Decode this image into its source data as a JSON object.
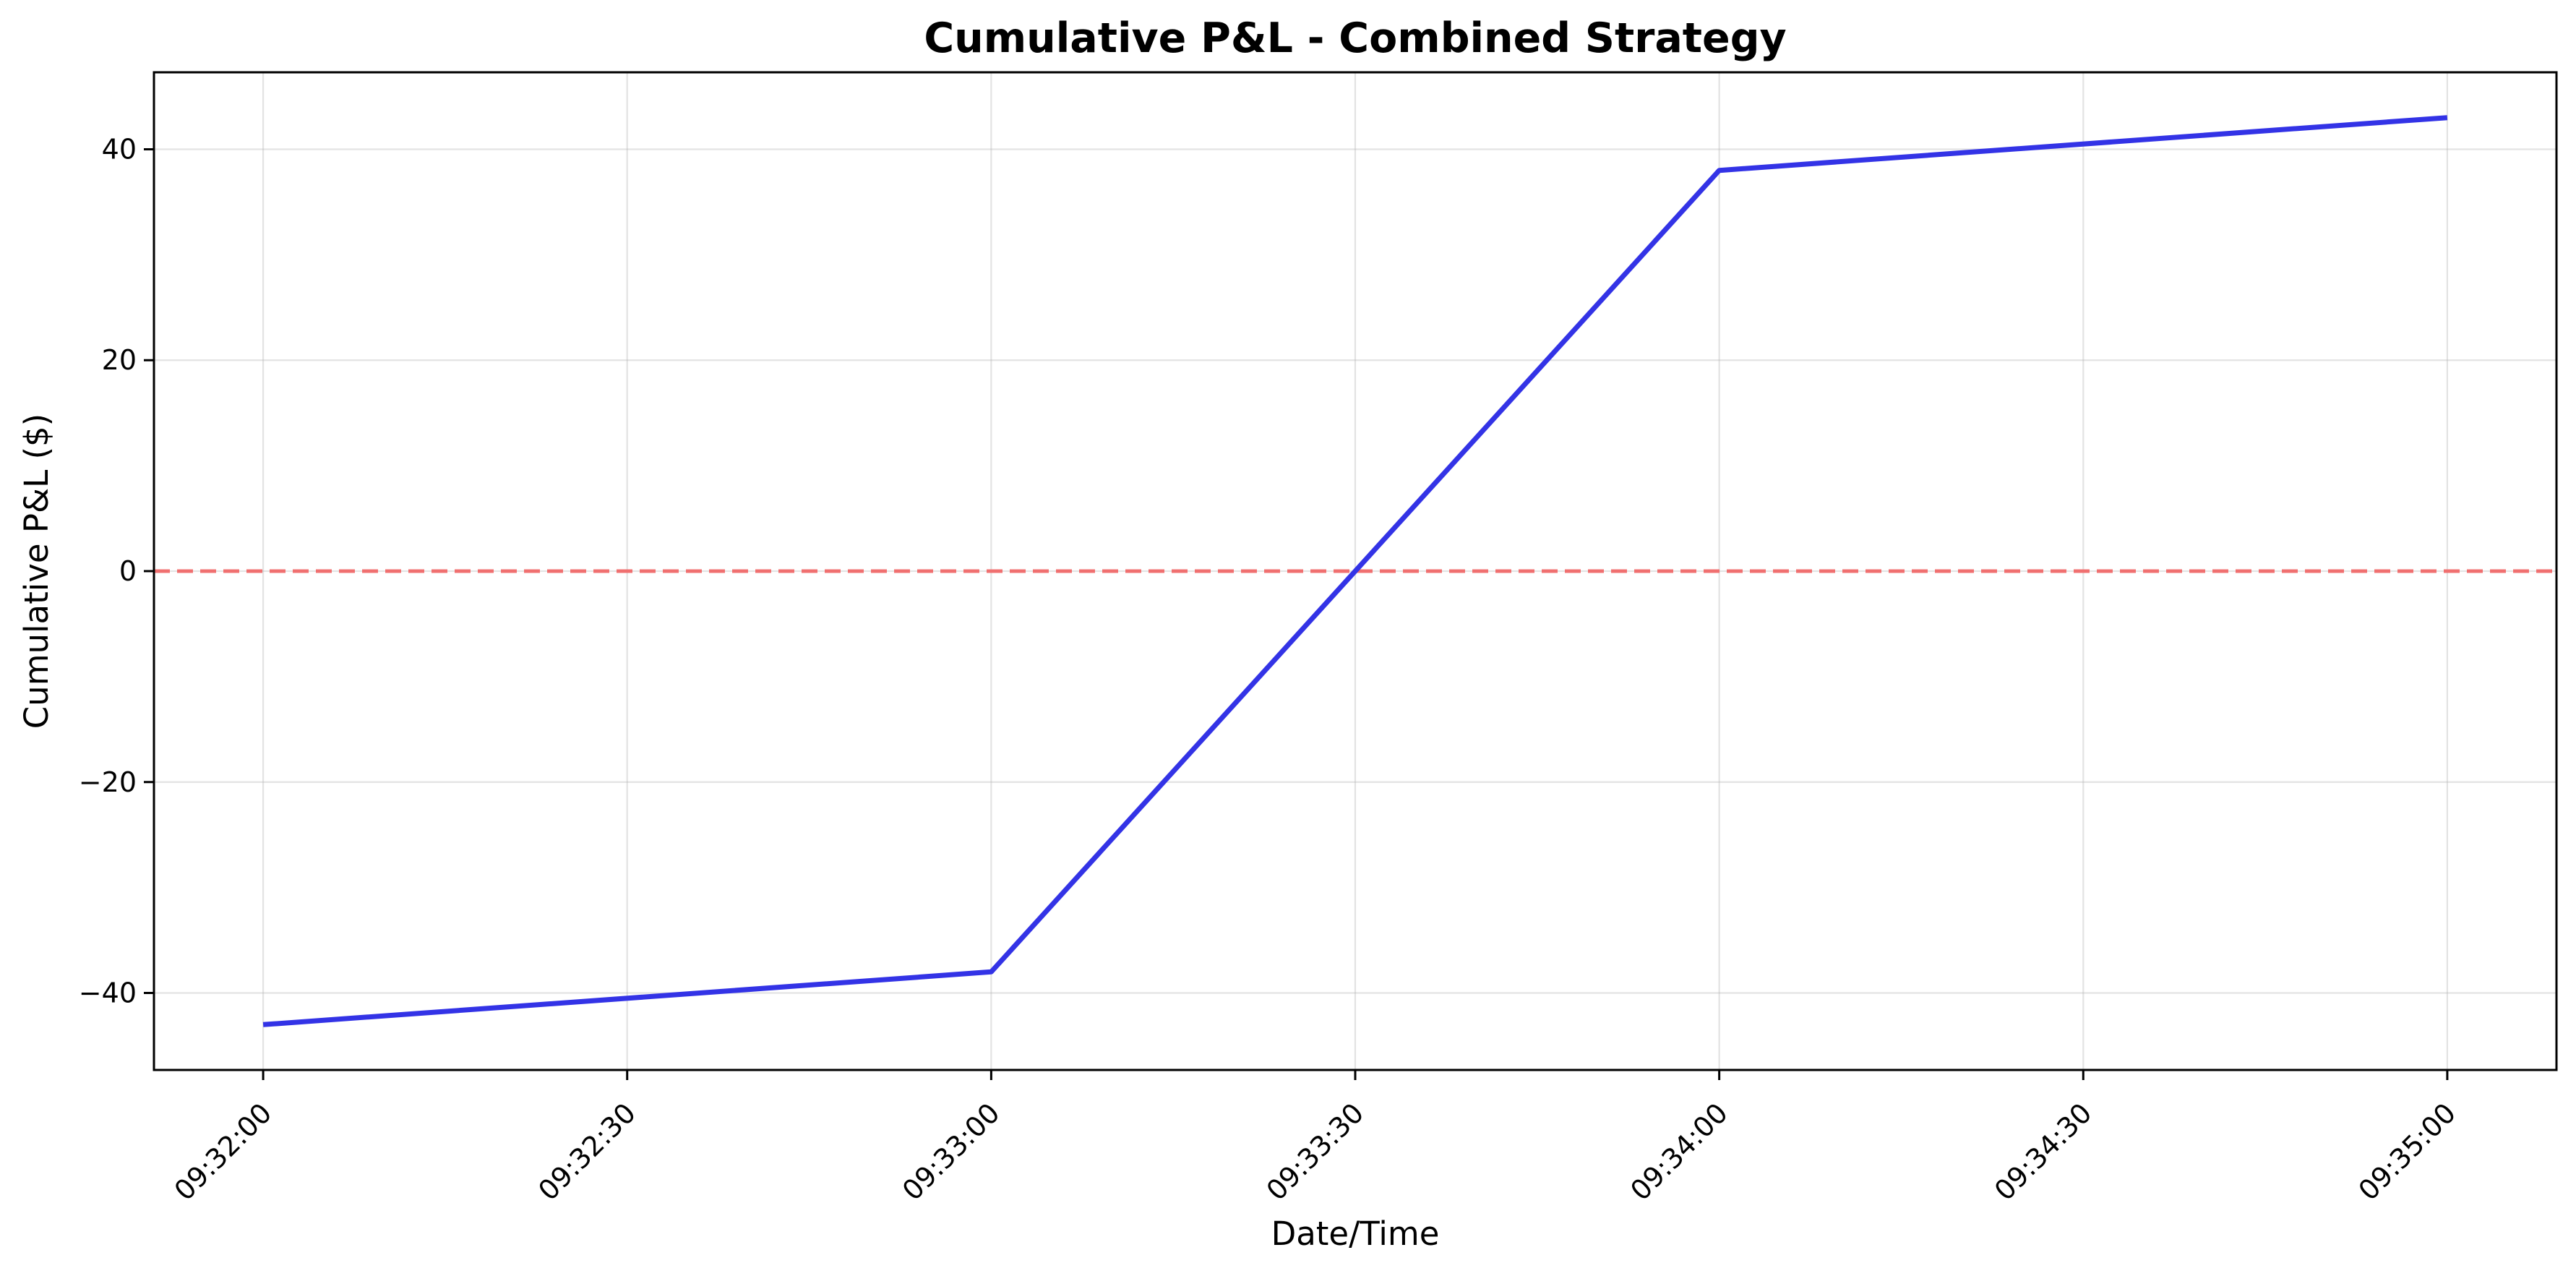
{
  "chart_data": {
    "type": "line",
    "title": "Cumulative P&L - Combined Strategy",
    "xlabel": "Date/Time",
    "ylabel": "Cumulative P&L ($)",
    "x_ticks": [
      "09:32:00",
      "09:32:30",
      "09:33:00",
      "09:33:30",
      "09:34:00",
      "09:34:30",
      "09:35:00"
    ],
    "y_ticks": [
      -40,
      -20,
      0,
      20,
      40
    ],
    "xlim": [
      "09:31:51",
      "09:35:09"
    ],
    "ylim": [
      -47.3,
      47.3
    ],
    "grid": true,
    "series": [
      {
        "color": "#3333e6",
        "x": [
          "09:32:00",
          "09:33:00",
          "09:34:00",
          "09:35:00"
        ],
        "values": [
          -43,
          -38,
          38,
          43
        ]
      }
    ],
    "reference_line": {
      "y": 0,
      "color": "#f07070",
      "style": "dashed"
    }
  }
}
